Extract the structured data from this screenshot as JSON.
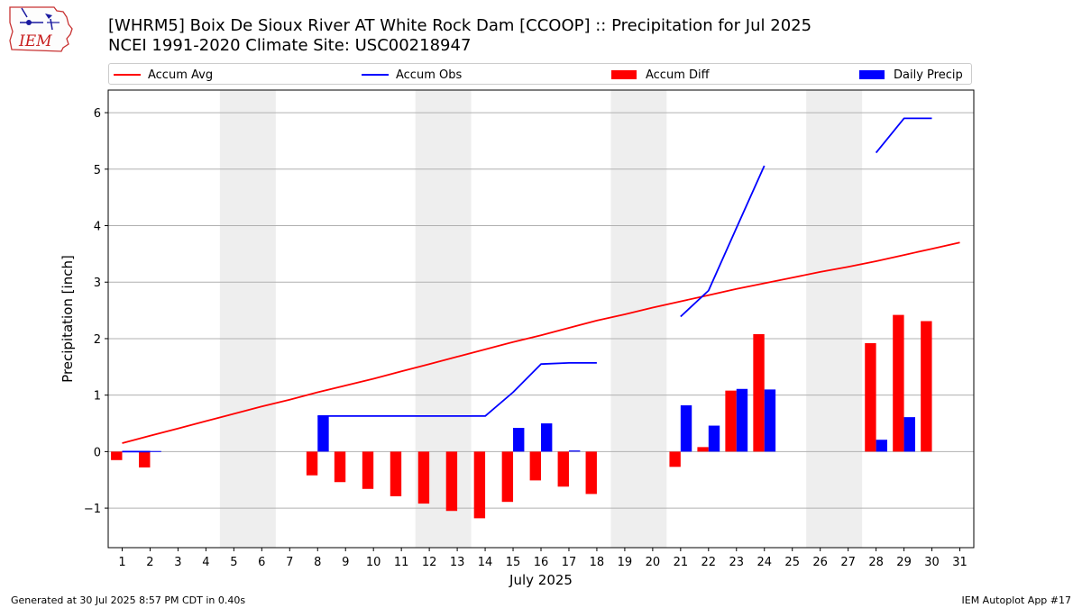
{
  "header": {
    "logo_text": "IEM",
    "title_line1": "[WHRM5] Boix De Sioux River  AT White Rock Dam [CCOOP] :: Precipitation for Jul 2025",
    "title_line2": "NCEI 1991-2020 Climate Site: USC00218947"
  },
  "footer": {
    "generated": "Generated at 30 Jul 2025 8:57 PM CDT in 0.40s",
    "app": "IEM Autoplot App #17"
  },
  "colors": {
    "accum_avg": "#ff0000",
    "accum_obs": "#0000ff",
    "accum_diff": "#ff0000",
    "daily_precip": "#0000ff",
    "weekend_band": "#eeeeee",
    "grid": "#b0b0b0"
  },
  "chart_data": {
    "type": "bar",
    "xlabel": "July 2025",
    "ylabel": "Precipitation [inch]",
    "xlim": [
      0.5,
      31.5
    ],
    "ylim": [
      -1.7,
      6.4
    ],
    "yticks": [
      -1,
      0,
      1,
      2,
      3,
      4,
      5,
      6
    ],
    "ytick_labels": [
      "−1",
      "0",
      "1",
      "2",
      "3",
      "4",
      "5",
      "6"
    ],
    "days": [
      1,
      2,
      3,
      4,
      5,
      6,
      7,
      8,
      9,
      10,
      11,
      12,
      13,
      14,
      15,
      16,
      17,
      18,
      19,
      20,
      21,
      22,
      23,
      24,
      25,
      26,
      27,
      28,
      29,
      30,
      31
    ],
    "weekend_bands": [
      [
        4.5,
        6.5
      ],
      [
        11.5,
        13.5
      ],
      [
        18.5,
        20.5
      ],
      [
        25.5,
        27.5
      ]
    ],
    "grid": "horizontal",
    "legend_position": "top",
    "legend": [
      "Accum Avg",
      "Accum Obs",
      "Accum Diff",
      "Daily Precip"
    ],
    "accum_avg": [
      0.15,
      0.28,
      0.41,
      0.54,
      0.67,
      0.8,
      0.92,
      1.05,
      1.17,
      1.29,
      1.42,
      1.55,
      1.68,
      1.81,
      1.94,
      2.06,
      2.19,
      2.32,
      2.43,
      2.55,
      2.66,
      2.77,
      2.88,
      2.98,
      3.08,
      3.18,
      3.27,
      3.37,
      3.48,
      3.59,
      3.7
    ],
    "accum_obs": [
      0.0,
      0.0,
      null,
      null,
      null,
      null,
      null,
      0.63,
      0.63,
      0.63,
      0.63,
      0.63,
      0.63,
      0.63,
      1.05,
      1.55,
      1.57,
      1.57,
      null,
      null,
      2.39,
      2.85,
      3.96,
      5.06,
      null,
      null,
      null,
      5.29,
      5.9,
      5.9,
      null
    ],
    "accum_diff": [
      -0.15,
      -0.28,
      null,
      null,
      null,
      null,
      null,
      -0.42,
      -0.54,
      -0.66,
      -0.79,
      -0.92,
      -1.05,
      -1.18,
      -0.89,
      -0.51,
      -0.62,
      -0.75,
      null,
      null,
      -0.27,
      0.08,
      1.08,
      2.08,
      null,
      null,
      null,
      1.92,
      2.42,
      2.31,
      null
    ],
    "daily_precip": [
      0.01,
      0.01,
      null,
      null,
      null,
      null,
      null,
      0.63,
      0,
      0,
      0,
      0,
      0,
      0,
      0.42,
      0.5,
      0.02,
      0,
      null,
      null,
      0.82,
      0.46,
      1.11,
      1.1,
      null,
      null,
      null,
      0.21,
      0.61,
      0,
      null
    ]
  }
}
